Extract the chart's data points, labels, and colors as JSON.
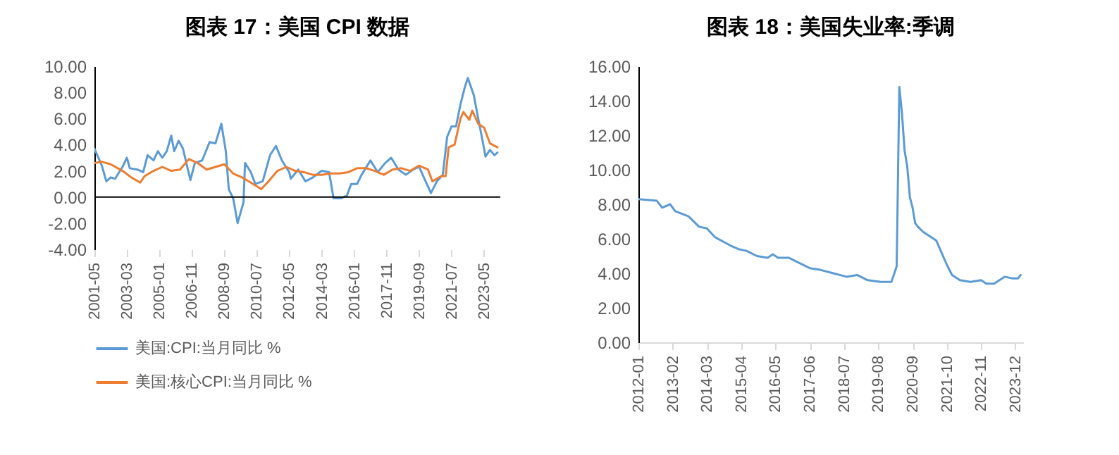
{
  "chart_data": [
    {
      "type": "line",
      "title": "图表 17：美国 CPI 数据",
      "xlim": [
        "2001-05",
        "2024-04"
      ],
      "xticks": [
        "2001-05",
        "2003-03",
        "2005-01",
        "2006-11",
        "2008-09",
        "2010-07",
        "2012-05",
        "2014-03",
        "2016-01",
        "2017-11",
        "2019-09",
        "2021-07",
        "2023-05"
      ],
      "ylim": [
        -4,
        10
      ],
      "yticks": [
        {
          "value": -4,
          "label": "-4.00"
        },
        {
          "value": -2,
          "label": "-2.00"
        },
        {
          "value": 0,
          "label": "0.00"
        },
        {
          "value": 2,
          "label": "2.00"
        },
        {
          "value": 4,
          "label": "4.00"
        },
        {
          "value": 6,
          "label": "6.00"
        },
        {
          "value": 8,
          "label": "8.00"
        },
        {
          "value": 10,
          "label": "10.00"
        }
      ],
      "legend": "bottom",
      "ref_lines": [
        {
          "axis": "y",
          "value": 0,
          "color": "#000000"
        }
      ],
      "series": [
        {
          "name": "美国:CPI:当月同比 %",
          "color": "#5b9bd5",
          "x": [
            "2001-05",
            "2001-10",
            "2002-01",
            "2002-04",
            "2002-07",
            "2002-12",
            "2003-03",
            "2003-05",
            "2003-10",
            "2004-02",
            "2004-05",
            "2004-09",
            "2004-12",
            "2005-03",
            "2005-06",
            "2005-09",
            "2005-11",
            "2006-02",
            "2006-05",
            "2006-10",
            "2007-01",
            "2007-06",
            "2007-11",
            "2008-03",
            "2008-07",
            "2008-10",
            "2008-12",
            "2009-03",
            "2009-06",
            "2009-10",
            "2009-11",
            "2010-03",
            "2010-06",
            "2010-11",
            "2011-04",
            "2011-08",
            "2011-12",
            "2012-05",
            "2012-06",
            "2012-11",
            "2013-04",
            "2013-09",
            "2014-03",
            "2014-08",
            "2014-11",
            "2015-04",
            "2015-08",
            "2015-11",
            "2016-03",
            "2016-06",
            "2016-12",
            "2017-05",
            "2017-10",
            "2018-02",
            "2018-07",
            "2018-12",
            "2019-05",
            "2019-09",
            "2020-05",
            "2020-09",
            "2021-01",
            "2021-04",
            "2021-07",
            "2021-10",
            "2022-01",
            "2022-04",
            "2022-06",
            "2022-10",
            "2023-01",
            "2023-03",
            "2023-06",
            "2023-09",
            "2023-12",
            "2024-02"
          ],
          "values": [
            3.7,
            2.4,
            1.2,
            1.5,
            1.4,
            2.3,
            3.0,
            2.2,
            2.1,
            1.9,
            3.2,
            2.8,
            3.5,
            3.0,
            3.5,
            4.7,
            3.5,
            4.3,
            3.7,
            1.3,
            2.6,
            2.8,
            4.2,
            4.1,
            5.6,
            3.5,
            0.6,
            -0.1,
            -2.0,
            -0.4,
            2.6,
            1.9,
            1.0,
            1.2,
            3.2,
            3.9,
            2.8,
            1.9,
            1.4,
            2.1,
            1.2,
            1.5,
            2.0,
            1.9,
            -0.1,
            -0.1,
            0.1,
            1.0,
            1.0,
            1.7,
            2.8,
            1.9,
            2.6,
            3.0,
            2.1,
            1.7,
            2.1,
            2.3,
            0.3,
            1.2,
            1.7,
            4.6,
            5.4,
            5.4,
            7.1,
            8.4,
            9.1,
            7.8,
            6.0,
            4.9,
            3.1,
            3.6,
            3.2,
            3.4
          ]
        },
        {
          "name": "美国:核心CPI:当月同比 %",
          "color": "#ed7d31",
          "x": [
            "2001-05",
            "2001-10",
            "2002-04",
            "2002-12",
            "2003-06",
            "2003-12",
            "2004-03",
            "2004-09",
            "2005-03",
            "2005-09",
            "2006-03",
            "2006-09",
            "2007-03",
            "2007-09",
            "2008-03",
            "2008-09",
            "2009-03",
            "2009-09",
            "2010-03",
            "2010-10",
            "2011-03",
            "2011-09",
            "2012-03",
            "2012-09",
            "2013-03",
            "2013-09",
            "2014-03",
            "2014-09",
            "2015-03",
            "2015-09",
            "2016-03",
            "2016-09",
            "2017-03",
            "2017-09",
            "2018-03",
            "2018-09",
            "2019-03",
            "2019-09",
            "2020-03",
            "2020-06",
            "2020-12",
            "2021-03",
            "2021-05",
            "2021-09",
            "2022-01",
            "2022-03",
            "2022-07",
            "2022-09",
            "2023-01",
            "2023-05",
            "2023-09",
            "2024-02"
          ],
          "values": [
            2.6,
            2.7,
            2.5,
            2.0,
            1.5,
            1.1,
            1.6,
            2.0,
            2.3,
            2.0,
            2.1,
            2.9,
            2.6,
            2.1,
            2.3,
            2.5,
            1.8,
            1.5,
            1.1,
            0.6,
            1.2,
            2.0,
            2.3,
            2.0,
            1.9,
            1.7,
            1.7,
            1.8,
            1.8,
            1.9,
            2.2,
            2.2,
            2.0,
            1.7,
            2.1,
            2.2,
            2.0,
            2.4,
            2.1,
            1.2,
            1.6,
            1.6,
            3.8,
            4.0,
            6.0,
            6.5,
            5.9,
            6.6,
            5.6,
            5.3,
            4.1,
            3.8
          ]
        }
      ]
    },
    {
      "type": "line",
      "title": "图表 18：美国失业率:季调",
      "xlim": [
        "2012-01",
        "2024-03"
      ],
      "xticks": [
        "2012-01",
        "2013-02",
        "2014-03",
        "2015-04",
        "2016-05",
        "2017-06",
        "2018-07",
        "2019-08",
        "2020-09",
        "2021-10",
        "2022-11",
        "2023-12"
      ],
      "ylim": [
        0,
        16
      ],
      "yticks": [
        {
          "value": 0,
          "label": "0.00"
        },
        {
          "value": 2,
          "label": "2.00"
        },
        {
          "value": 4,
          "label": "4.00"
        },
        {
          "value": 6,
          "label": "6.00"
        },
        {
          "value": 8,
          "label": "8.00"
        },
        {
          "value": 10,
          "label": "10.00"
        },
        {
          "value": 12,
          "label": "12.00"
        },
        {
          "value": 14,
          "label": "14.00"
        },
        {
          "value": 16,
          "label": "16.00"
        }
      ],
      "series": [
        {
          "color": "#5b9bd5",
          "x": [
            "2012-01",
            "2012-08",
            "2012-10",
            "2013-01",
            "2013-03",
            "2013-08",
            "2013-12",
            "2014-03",
            "2014-06",
            "2014-12",
            "2015-03",
            "2015-06",
            "2015-10",
            "2016-02",
            "2016-04",
            "2016-06",
            "2016-10",
            "2017-02",
            "2017-06",
            "2017-10",
            "2018-03",
            "2018-08",
            "2018-12",
            "2019-04",
            "2019-09",
            "2020-01",
            "2020-03",
            "2020-04",
            "2020-05",
            "2020-06",
            "2020-07",
            "2020-08",
            "2020-09",
            "2020-10",
            "2020-11",
            "2021-01",
            "2021-04",
            "2021-06",
            "2021-08",
            "2021-10",
            "2021-12",
            "2022-03",
            "2022-07",
            "2022-11",
            "2023-01",
            "2023-04",
            "2023-06",
            "2023-08",
            "2023-11",
            "2024-01",
            "2024-02"
          ],
          "values": [
            8.3,
            8.2,
            7.8,
            8.0,
            7.6,
            7.3,
            6.7,
            6.6,
            6.1,
            5.6,
            5.4,
            5.3,
            5.0,
            4.9,
            5.1,
            4.9,
            4.9,
            4.6,
            4.3,
            4.2,
            4.0,
            3.8,
            3.9,
            3.6,
            3.5,
            3.5,
            4.4,
            14.8,
            13.3,
            11.1,
            10.2,
            8.4,
            7.8,
            6.9,
            6.7,
            6.4,
            6.1,
            5.9,
            5.2,
            4.5,
            3.9,
            3.6,
            3.5,
            3.6,
            3.4,
            3.4,
            3.6,
            3.8,
            3.7,
            3.7,
            3.9
          ]
        }
      ]
    }
  ]
}
